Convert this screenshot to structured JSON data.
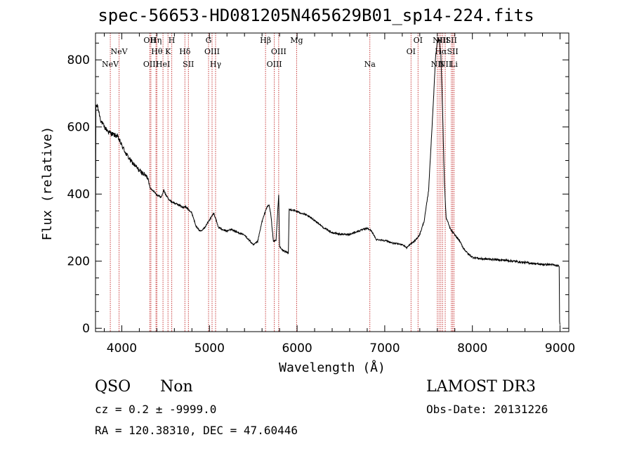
{
  "header": {
    "title": "spec-56653-HD081205N465629B01_sp14-224.fits"
  },
  "chart_data": {
    "type": "line",
    "title": "spec-56653-HD081205N465629B01_sp14-224.fits",
    "xlabel": "Wavelength (Å)",
    "ylabel": "Flux (relative)",
    "xlim": [
      3700,
      9100
    ],
    "ylim": [
      -10,
      880
    ],
    "xticks": [
      {
        "value": 4000,
        "label": "4000"
      },
      {
        "value": 5000,
        "label": "5000"
      },
      {
        "value": 6000,
        "label": "6000"
      },
      {
        "value": 7000,
        "label": "7000"
      },
      {
        "value": 8000,
        "label": "8000"
      },
      {
        "value": 9000,
        "label": "9000"
      }
    ],
    "yticks": [
      {
        "value": 0,
        "label": "0"
      },
      {
        "value": 200,
        "label": "200"
      },
      {
        "value": 400,
        "label": "400"
      },
      {
        "value": 600,
        "label": "600"
      },
      {
        "value": 800,
        "label": "800"
      }
    ],
    "series": [
      {
        "name": "spectrum",
        "color": "#000000",
        "points": [
          [
            3700,
            240
          ],
          [
            3705,
            660
          ],
          [
            3720,
            665
          ],
          [
            3760,
            620
          ],
          [
            3800,
            600
          ],
          [
            3850,
            585
          ],
          [
            3900,
            578
          ],
          [
            3950,
            572
          ],
          [
            4000,
            545
          ],
          [
            4050,
            520
          ],
          [
            4100,
            500
          ],
          [
            4150,
            485
          ],
          [
            4200,
            470
          ],
          [
            4250,
            460
          ],
          [
            4300,
            448
          ],
          [
            4310,
            432
          ],
          [
            4330,
            415
          ],
          [
            4360,
            410
          ],
          [
            4400,
            398
          ],
          [
            4450,
            390
          ],
          [
            4480,
            412
          ],
          [
            4500,
            398
          ],
          [
            4550,
            380
          ],
          [
            4600,
            373
          ],
          [
            4650,
            368
          ],
          [
            4700,
            360
          ],
          [
            4730,
            362
          ],
          [
            4760,
            355
          ],
          [
            4800,
            343
          ],
          [
            4850,
            303
          ],
          [
            4880,
            293
          ],
          [
            4900,
            290
          ],
          [
            4950,
            302
          ],
          [
            5000,
            323
          ],
          [
            5050,
            343
          ],
          [
            5080,
            320
          ],
          [
            5100,
            302
          ],
          [
            5150,
            293
          ],
          [
            5200,
            290
          ],
          [
            5250,
            295
          ],
          [
            5300,
            288
          ],
          [
            5350,
            283
          ],
          [
            5400,
            277
          ],
          [
            5450,
            264
          ],
          [
            5500,
            248
          ],
          [
            5550,
            258
          ],
          [
            5600,
            318
          ],
          [
            5650,
            358
          ],
          [
            5680,
            368
          ],
          [
            5700,
            340
          ],
          [
            5730,
            258
          ],
          [
            5760,
            263
          ],
          [
            5790,
            398
          ],
          [
            5800,
            243
          ],
          [
            5830,
            233
          ],
          [
            5870,
            228
          ],
          [
            5900,
            223
          ],
          [
            5910,
            353
          ],
          [
            5950,
            353
          ],
          [
            6000,
            348
          ],
          [
            6050,
            343
          ],
          [
            6100,
            338
          ],
          [
            6200,
            322
          ],
          [
            6300,
            300
          ],
          [
            6400,
            285
          ],
          [
            6500,
            280
          ],
          [
            6600,
            280
          ],
          [
            6700,
            290
          ],
          [
            6800,
            298
          ],
          [
            6850,
            290
          ],
          [
            6900,
            265
          ],
          [
            7000,
            262
          ],
          [
            7100,
            253
          ],
          [
            7200,
            250
          ],
          [
            7250,
            240
          ],
          [
            7300,
            252
          ],
          [
            7350,
            262
          ],
          [
            7400,
            280
          ],
          [
            7450,
            320
          ],
          [
            7500,
            410
          ],
          [
            7550,
            650
          ],
          [
            7580,
            810
          ],
          [
            7600,
            855
          ],
          [
            7620,
            860
          ],
          [
            7640,
            820
          ],
          [
            7660,
            650
          ],
          [
            7680,
            440
          ],
          [
            7700,
            330
          ],
          [
            7750,
            295
          ],
          [
            7800,
            278
          ],
          [
            7850,
            262
          ],
          [
            7900,
            238
          ],
          [
            7950,
            222
          ],
          [
            8000,
            212
          ],
          [
            8100,
            207
          ],
          [
            8200,
            206
          ],
          [
            8300,
            204
          ],
          [
            8400,
            202
          ],
          [
            8500,
            199
          ],
          [
            8600,
            196
          ],
          [
            8700,
            193
          ],
          [
            8800,
            190
          ],
          [
            8900,
            190
          ],
          [
            8990,
            185
          ],
          [
            8995,
            20
          ],
          [
            9000,
            10
          ]
        ]
      }
    ],
    "line_markers": [
      {
        "wavelength": 3869,
        "label": "NeV",
        "row": 2
      },
      {
        "wavelength": 3969,
        "label": "NeV",
        "row": 1
      },
      {
        "wavelength": 4319,
        "label": "OII",
        "row": 0
      },
      {
        "wavelength": 4332,
        "label": "OIII",
        "row": 2
      },
      {
        "wavelength": 4390,
        "label": "Hη",
        "row": 0
      },
      {
        "wavelength": 4400,
        "label": "Hθ",
        "row": 1
      },
      {
        "wavelength": 4470,
        "label": "HeI",
        "row": 2
      },
      {
        "wavelength": 4527,
        "label": "K",
        "row": 1
      },
      {
        "wavelength": 4570,
        "label": "H",
        "row": 0
      },
      {
        "wavelength": 4720,
        "label": "Hδ",
        "row": 1
      },
      {
        "wavelength": 4760,
        "label": "SII",
        "row": 2
      },
      {
        "wavelength": 4990,
        "label": "G",
        "row": 0
      },
      {
        "wavelength": 5030,
        "label": "OIII",
        "row": 1
      },
      {
        "wavelength": 5070,
        "label": "Hγ",
        "row": 2
      },
      {
        "wavelength": 5640,
        "label": "Hβ",
        "row": 0
      },
      {
        "wavelength": 5740,
        "label": "OIII",
        "row": 2
      },
      {
        "wavelength": 5790,
        "label": "OIII",
        "row": 1
      },
      {
        "wavelength": 5995,
        "label": "Mg",
        "row": 0
      },
      {
        "wavelength": 6830,
        "label": "Na",
        "row": 2
      },
      {
        "wavelength": 7300,
        "label": "OI",
        "row": 1
      },
      {
        "wavelength": 7380,
        "label": "OI",
        "row": 0
      },
      {
        "wavelength": 7600,
        "label": "NII",
        "row": 2
      },
      {
        "wavelength": 7620,
        "label": "NII",
        "row": 0
      },
      {
        "wavelength": 7640,
        "label": "Hα",
        "row": 1
      },
      {
        "wavelength": 7660,
        "label": "NII",
        "row": 0
      },
      {
        "wavelength": 7690,
        "label": "NII",
        "row": 2
      },
      {
        "wavelength": 7760,
        "label": "SII",
        "row": 0
      },
      {
        "wavelength": 7775,
        "label": "SII",
        "row": 1
      },
      {
        "wavelength": 7790,
        "label": "Li",
        "row": 2
      }
    ],
    "marker_color": "#c83c3c"
  },
  "info": {
    "object_class": "QSO",
    "subclass": "Non",
    "survey": "LAMOST DR3",
    "cz": "cz = 0.2 ± -9999.0",
    "obs_date": "Obs-Date: 20131226",
    "radec": "RA = 120.38310, DEC =  47.60446"
  }
}
